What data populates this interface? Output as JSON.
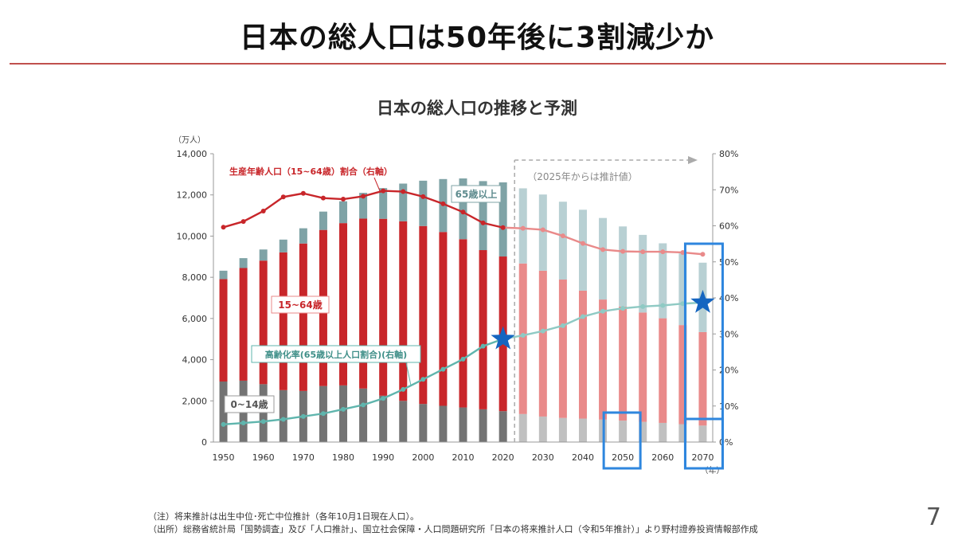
{
  "slide": {
    "title": "日本の総人口は50年後に3割減少か",
    "page_number": "7",
    "notes": [
      "（注）将来推計は出生中位･死亡中位推計（各年10月1日現在人口）。",
      "（出所）総務省統計局「国勢調査」及び「人口推計」、国立社会保障・人口問題研究所「日本の将来推計人口（令和5年推計）」より野村證券投資情報部作成"
    ]
  },
  "chart_data": {
    "type": "bar",
    "title": "日本の総人口の推移と予測",
    "y_left_unit": "（万人）",
    "x_unit": "（年）",
    "ylim": [
      0,
      14000
    ],
    "y2lim": [
      0,
      80
    ],
    "y_ticks": [
      "0",
      "2,000",
      "4,000",
      "6,000",
      "8,000",
      "10,000",
      "12,000",
      "14,000"
    ],
    "y2_ticks": [
      "0%",
      "10%",
      "20%",
      "30%",
      "40%",
      "50%",
      "60%",
      "70%",
      "80%"
    ],
    "x": [
      1950,
      1955,
      1960,
      1965,
      1970,
      1975,
      1980,
      1985,
      1990,
      1995,
      2000,
      2005,
      2010,
      2015,
      2020,
      2025,
      2030,
      2035,
      2040,
      2045,
      2050,
      2055,
      2060,
      2065,
      2070
    ],
    "x_tick_labels": [
      "1950",
      "1960",
      "1970",
      "1980",
      "1990",
      "2000",
      "2010",
      "2020",
      "2030",
      "2040",
      "2050",
      "2060",
      "2070"
    ],
    "forecast_from": 2025,
    "forecast_label": "（2025年からは推計値）",
    "series": [
      {
        "name": "0~14歳",
        "kind": "bar",
        "values": [
          2940,
          2980,
          2810,
          2520,
          2480,
          2720,
          2750,
          2600,
          2250,
          2000,
          1850,
          1760,
          1680,
          1590,
          1500,
          1360,
          1240,
          1170,
          1140,
          1090,
          1040,
          980,
          930,
          870,
          800
        ],
        "color": "#737373",
        "forecast_color": "#c0c0c0"
      },
      {
        "name": "15~64歳",
        "kind": "bar",
        "values": [
          4970,
          5470,
          6000,
          6690,
          7160,
          7580,
          7880,
          8250,
          8590,
          8720,
          8640,
          8440,
          8170,
          7730,
          7510,
          7310,
          7080,
          6720,
          6210,
          5830,
          5540,
          5310,
          5080,
          4810,
          4540
        ],
        "color": "#c8262a",
        "forecast_color": "#e98a8a"
      },
      {
        "name": "65歳以上",
        "kind": "bar",
        "values": [
          410,
          480,
          540,
          620,
          740,
          890,
          1060,
          1250,
          1490,
          1830,
          2200,
          2570,
          2950,
          3350,
          3600,
          3650,
          3700,
          3780,
          3930,
          3960,
          3890,
          3770,
          3640,
          3480,
          3370
        ],
        "color": "#7fa3a6",
        "forecast_color": "#b8d0d3"
      },
      {
        "name": "生産年齢人口（15~64歳）割合（右軸）",
        "kind": "line",
        "axis": "right",
        "values": [
          59.6,
          61.2,
          64.1,
          68.0,
          69.0,
          67.7,
          67.4,
          68.2,
          69.7,
          69.5,
          68.1,
          66.1,
          63.8,
          60.8,
          59.5,
          59.3,
          58.9,
          57.2,
          55.1,
          53.4,
          52.9,
          52.8,
          52.8,
          52.6,
          52.1
        ],
        "color": "#c8262a",
        "forecast_color": "#e98a8a"
      },
      {
        "name": "高齢化率(65歳以上人口割合)(右軸)",
        "kind": "line",
        "axis": "right",
        "values": [
          4.9,
          5.3,
          5.7,
          6.3,
          7.1,
          7.9,
          9.1,
          10.3,
          12.1,
          14.6,
          17.4,
          20.2,
          23.0,
          26.6,
          28.6,
          29.6,
          30.8,
          32.3,
          34.8,
          36.3,
          37.1,
          37.6,
          37.9,
          38.4,
          38.7
        ],
        "color": "#5fb5ad",
        "forecast_color": "#8fcac4"
      }
    ],
    "labels": {
      "working_ratio": "生産年齢人口（15~64歳）割合（右軸）",
      "elderly": "65歳以上",
      "working": "15~64歳",
      "aging_rate": "高齢化率(65歳以上人口割合)(右軸)",
      "children": "0~14歳"
    },
    "highlight_years": [
      2050,
      2070
    ],
    "star_years": [
      2020,
      2070
    ],
    "colors": {
      "highlight": "#2e86de",
      "star": "#1565c0",
      "arrow": "#aaaaaa"
    },
    "grid": false,
    "legend": "inline-labels"
  }
}
